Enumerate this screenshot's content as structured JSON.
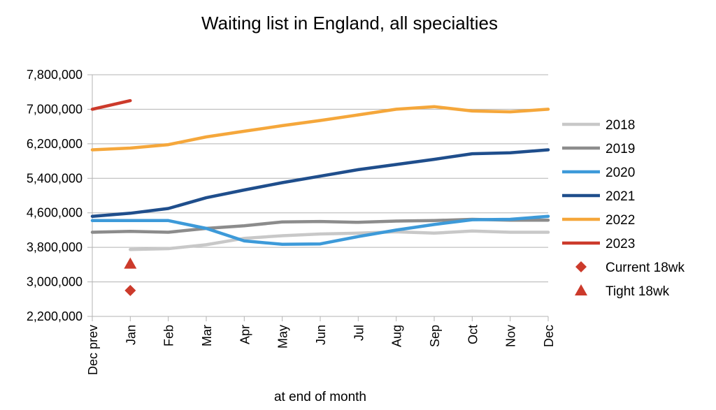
{
  "chart_data": {
    "type": "line",
    "title": "Waiting list in England, all specialties",
    "xlabel": "at end of month",
    "ylabel": "",
    "categories": [
      "Dec prev",
      "Jan",
      "Feb",
      "Mar",
      "Apr",
      "May",
      "Jun",
      "Jul",
      "Aug",
      "Sep",
      "Oct",
      "Nov",
      "Dec"
    ],
    "ylim": [
      2200000,
      7800000
    ],
    "yticks": [
      "2,200,000",
      "3,000,000",
      "3,800,000",
      "4,600,000",
      "5,400,000",
      "6,200,000",
      "7,000,000",
      "7,800,000"
    ],
    "grid": true,
    "legend_position": "right",
    "series": [
      {
        "name": "2018",
        "color": "#c8c8c8",
        "values": [
          null,
          3750000,
          3770000,
          3860000,
          4010000,
          4070000,
          4110000,
          4130000,
          4160000,
          4130000,
          4180000,
          4150000,
          4150000
        ]
      },
      {
        "name": "2019",
        "color": "#8c8c8c",
        "values": [
          4150000,
          4170000,
          4150000,
          4240000,
          4300000,
          4390000,
          4400000,
          4380000,
          4410000,
          4420000,
          4450000,
          4430000,
          4430000
        ]
      },
      {
        "name": "2020",
        "color": "#3d9ad9",
        "values": [
          4420000,
          4420000,
          4420000,
          4240000,
          3950000,
          3870000,
          3880000,
          4050000,
          4200000,
          4330000,
          4440000,
          4450000,
          4520000
        ]
      },
      {
        "name": "2021",
        "color": "#1f4e8c",
        "values": [
          4520000,
          4590000,
          4700000,
          4950000,
          5130000,
          5300000,
          5450000,
          5600000,
          5720000,
          5840000,
          5970000,
          5990000,
          6060000
        ]
      },
      {
        "name": "2022",
        "color": "#f5a73b",
        "values": [
          6060000,
          6100000,
          6180000,
          6360000,
          6490000,
          6620000,
          6740000,
          6870000,
          7000000,
          7060000,
          6960000,
          6940000,
          7000000
        ]
      },
      {
        "name": "2023",
        "color": "#cc3a2b",
        "values": [
          7000000,
          7200000,
          null,
          null,
          null,
          null,
          null,
          null,
          null,
          null,
          null,
          null,
          null
        ]
      }
    ],
    "markers": [
      {
        "name": "Current 18wk",
        "shape": "diamond",
        "color": "#cc3a2b",
        "category": "Jan",
        "value": 2800000
      },
      {
        "name": "Tight 18wk",
        "shape": "triangle",
        "color": "#cc3a2b",
        "category": "Jan",
        "value": 3420000
      }
    ]
  }
}
